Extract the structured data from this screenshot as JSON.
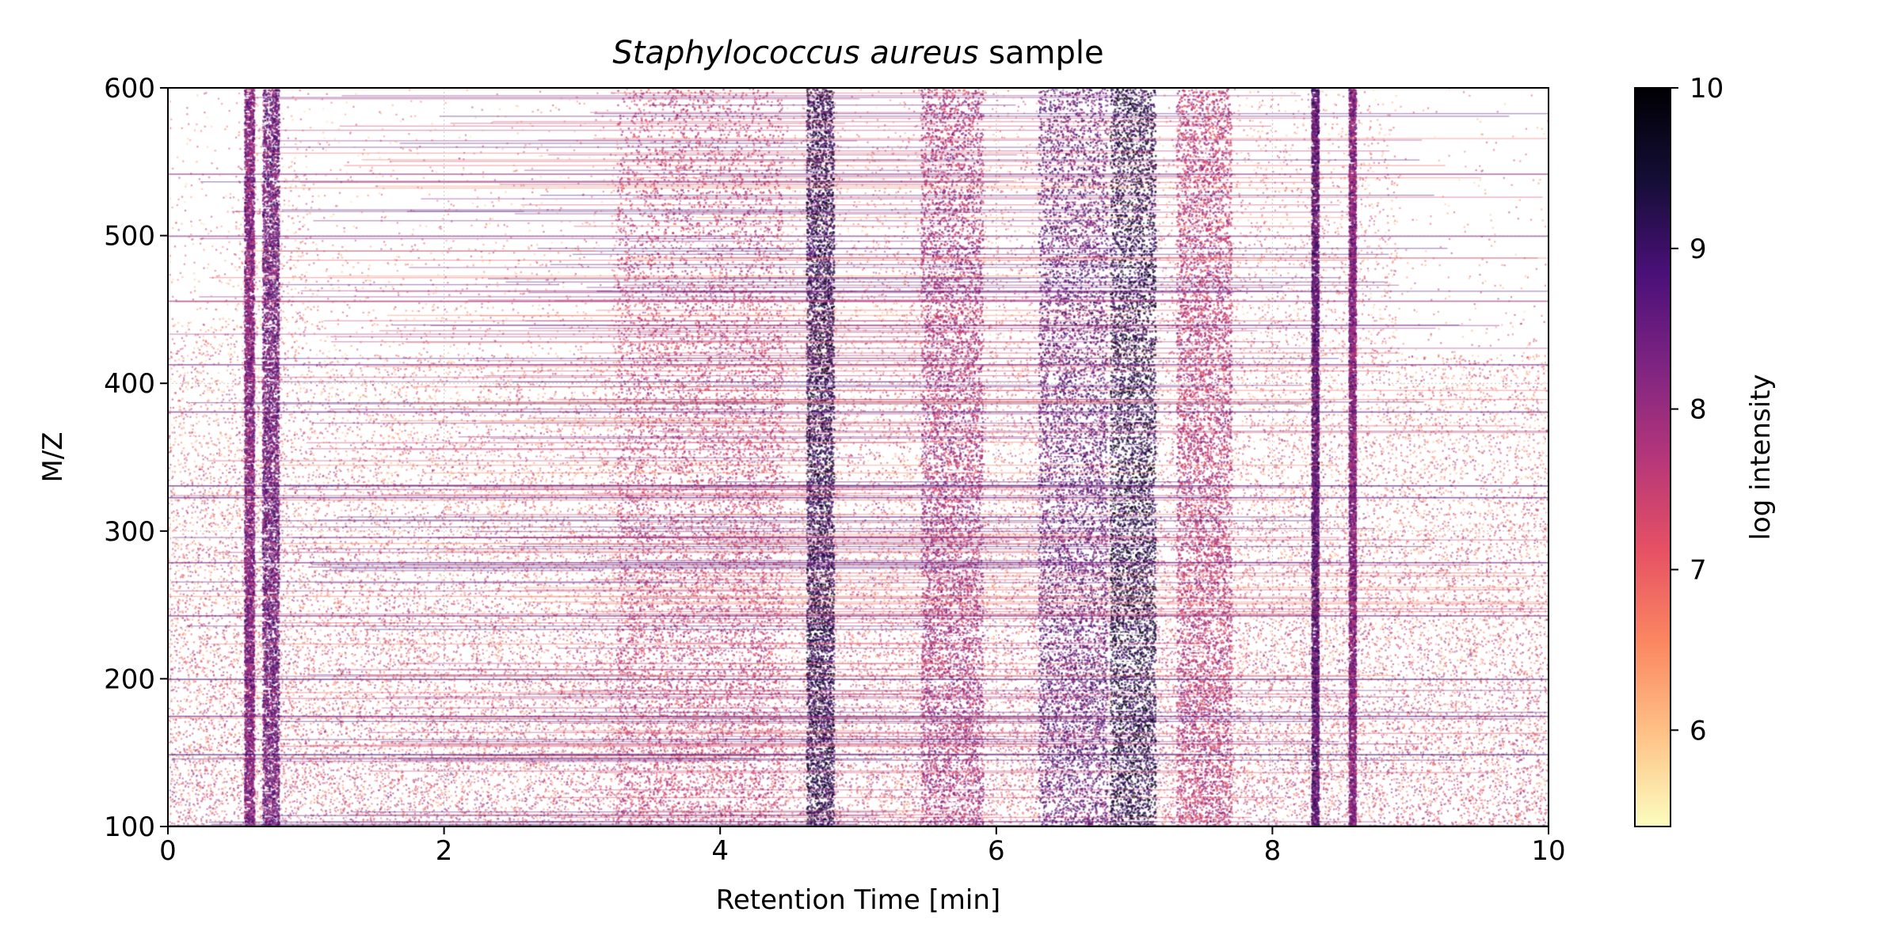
{
  "chart_data": {
    "type": "heatmap",
    "title": {
      "italic": "Staphylococcus aureus",
      "rest": " sample"
    },
    "xlabel": "Retention Time [min]",
    "ylabel": "M/Z",
    "xlim": [
      0,
      10
    ],
    "ylim": [
      100,
      600
    ],
    "xticks": [
      0,
      2,
      4,
      6,
      8,
      10
    ],
    "yticks": [
      100,
      200,
      300,
      400,
      500,
      600
    ],
    "grid": true,
    "colormap": "magma_r",
    "colors": [
      "#fcfdbf",
      "#fec287",
      "#fb8761",
      "#e65164",
      "#b5367a",
      "#7e2482",
      "#4a1078",
      "#150e37",
      "#000004"
    ],
    "colorbar": {
      "label": "log intensity",
      "range": [
        5.4,
        10
      ],
      "ticks": [
        6,
        7,
        8,
        9,
        10
      ]
    },
    "retention_time_bands": [
      {
        "rt_start": 0.55,
        "rt_end": 0.62,
        "log_intensity": 8.6
      },
      {
        "rt_start": 0.68,
        "rt_end": 0.8,
        "log_intensity": 8.8
      },
      {
        "rt_start": 3.25,
        "rt_end": 4.45,
        "log_intensity": 7.8
      },
      {
        "rt_start": 4.62,
        "rt_end": 4.82,
        "log_intensity": 9.6
      },
      {
        "rt_start": 5.45,
        "rt_end": 5.9,
        "log_intensity": 8.2
      },
      {
        "rt_start": 6.3,
        "rt_end": 6.8,
        "log_intensity": 8.9
      },
      {
        "rt_start": 6.82,
        "rt_end": 7.15,
        "log_intensity": 9.7
      },
      {
        "rt_start": 7.3,
        "rt_end": 7.7,
        "log_intensity": 8.0
      },
      {
        "rt_start": 8.28,
        "rt_end": 8.33,
        "log_intensity": 9.0
      },
      {
        "rt_start": 8.55,
        "rt_end": 8.6,
        "log_intensity": 8.6
      }
    ],
    "mz_lines": [
      {
        "mz": 101,
        "log_intensity": 9.2
      },
      {
        "mz": 149,
        "log_intensity": 9.0
      },
      {
        "mz": 175,
        "log_intensity": 8.6
      },
      {
        "mz": 200,
        "log_intensity": 8.8
      },
      {
        "mz": 243,
        "log_intensity": 8.5
      },
      {
        "mz": 279,
        "log_intensity": 8.4
      },
      {
        "mz": 323,
        "log_intensity": 8.7
      },
      {
        "mz": 331,
        "log_intensity": 8.9
      },
      {
        "mz": 381,
        "log_intensity": 8.6
      },
      {
        "mz": 413,
        "log_intensity": 8.4
      },
      {
        "mz": 456,
        "log_intensity": 8.0
      },
      {
        "mz": 500,
        "log_intensity": 8.2
      },
      {
        "mz": 542,
        "log_intensity": 8.1
      }
    ]
  }
}
